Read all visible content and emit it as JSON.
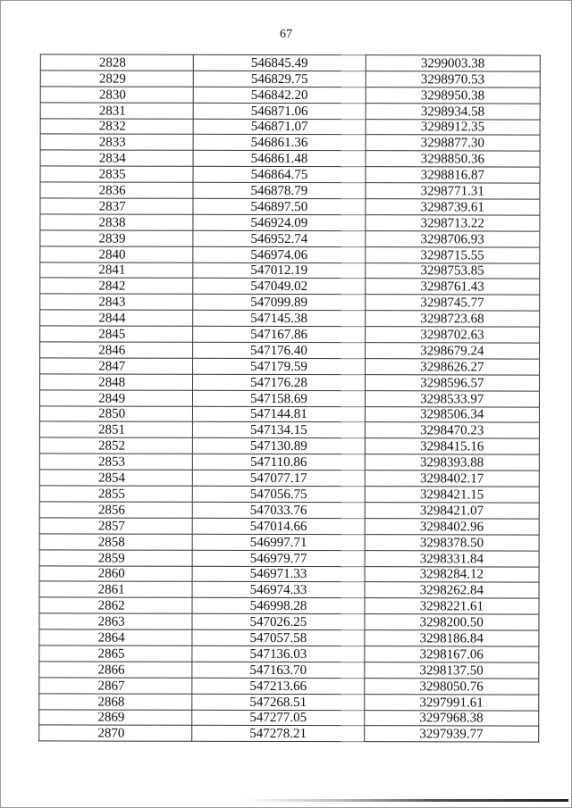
{
  "page_number": "67",
  "table": {
    "rows": [
      [
        "2828",
        "546845.49",
        "3299003.38"
      ],
      [
        "2829",
        "546829.75",
        "3298970.53"
      ],
      [
        "2830",
        "546842.20",
        "3298950.38"
      ],
      [
        "2831",
        "546871.06",
        "3298934.58"
      ],
      [
        "2832",
        "546871.07",
        "3298912.35"
      ],
      [
        "2833",
        "546861.36",
        "3298877.30"
      ],
      [
        "2834",
        "546861.48",
        "3298850.36"
      ],
      [
        "2835",
        "546864.75",
        "3298816.87"
      ],
      [
        "2836",
        "546878.79",
        "3298771.31"
      ],
      [
        "2837",
        "546897.50",
        "3298739.61"
      ],
      [
        "2838",
        "546924.09",
        "3298713.22"
      ],
      [
        "2839",
        "546952.74",
        "3298706.93"
      ],
      [
        "2840",
        "546974.06",
        "3298715.55"
      ],
      [
        "2841",
        "547012.19",
        "3298753.85"
      ],
      [
        "2842",
        "547049.02",
        "3298761.43"
      ],
      [
        "2843",
        "547099.89",
        "3298745.77"
      ],
      [
        "2844",
        "547145.38",
        "3298723.68"
      ],
      [
        "2845",
        "547167.86",
        "3298702.63"
      ],
      [
        "2846",
        "547176.40",
        "3298679.24"
      ],
      [
        "2847",
        "547179.59",
        "3298626.27"
      ],
      [
        "2848",
        "547176.28",
        "3298596.57"
      ],
      [
        "2849",
        "547158.69",
        "3298533.97"
      ],
      [
        "2850",
        "547144.81",
        "3298506.34"
      ],
      [
        "2851",
        "547134.15",
        "3298470.23"
      ],
      [
        "2852",
        "547130.89",
        "3298415.16"
      ],
      [
        "2853",
        "547110.86",
        "3298393.88"
      ],
      [
        "2854",
        "547077.17",
        "3298402.17"
      ],
      [
        "2855",
        "547056.75",
        "3298421.15"
      ],
      [
        "2856",
        "547033.76",
        "3298421.07"
      ],
      [
        "2857",
        "547014.66",
        "3298402.96"
      ],
      [
        "2858",
        "546997.71",
        "3298378.50"
      ],
      [
        "2859",
        "546979.77",
        "3298331.84"
      ],
      [
        "2860",
        "546971.33",
        "3298284.12"
      ],
      [
        "2861",
        "546974.33",
        "3298262.84"
      ],
      [
        "2862",
        "546998.28",
        "3298221.61"
      ],
      [
        "2863",
        "547026.25",
        "3298200.50"
      ],
      [
        "2864",
        "547057.58",
        "3298186.84"
      ],
      [
        "2865",
        "547136.03",
        "3298167.06"
      ],
      [
        "2866",
        "547163.70",
        "3298137.50"
      ],
      [
        "2867",
        "547213.66",
        "3298050.76"
      ],
      [
        "2868",
        "547268.51",
        "3297991.61"
      ],
      [
        "2869",
        "547277.05",
        "3297968.38"
      ],
      [
        "2870",
        "547278.21",
        "3297939.77"
      ]
    ]
  }
}
